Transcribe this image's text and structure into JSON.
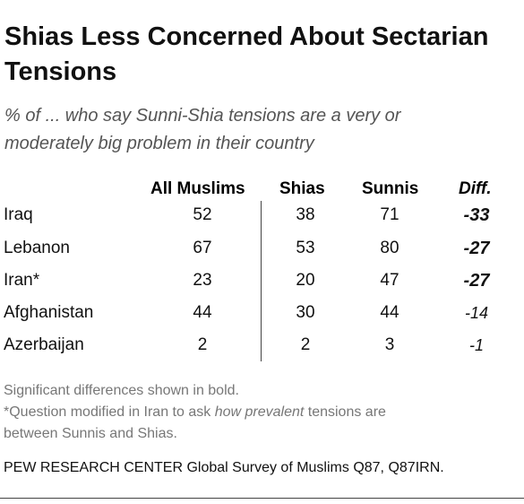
{
  "header": {
    "title_line1": "Shias Less Concerned About Sectarian",
    "title_line2": "Tensions",
    "subtitle_line1": "% of ... who say Sunni-Shia tensions are a very or",
    "subtitle_line2": "moderately big problem in their country"
  },
  "chart_data": {
    "type": "table",
    "columns": [
      "All Muslims",
      "Shias",
      "Sunnis",
      "Diff."
    ],
    "rows": [
      {
        "label": "Iraq",
        "values": [
          "52",
          "38",
          "71",
          "-33"
        ],
        "significant": true
      },
      {
        "label": "Lebanon",
        "values": [
          "67",
          "53",
          "80",
          "-27"
        ],
        "significant": true
      },
      {
        "label": "Iran*",
        "values": [
          "23",
          "20",
          "47",
          "-27"
        ],
        "significant": true
      },
      {
        "label": "Afghanistan",
        "values": [
          "44",
          "30",
          "44",
          "-14"
        ],
        "significant": false
      },
      {
        "label": "Azerbaijan",
        "values": [
          "2",
          "2",
          "3",
          "-1"
        ],
        "significant": false
      }
    ]
  },
  "footnotes": {
    "line1": "Significant differences shown in bold.",
    "line2_pre": "*Question modified in Iran to ask ",
    "line2_italic": "how prevalent",
    "line2_post": " tensions are",
    "line3": "between Sunnis and Shias."
  },
  "source": {
    "org": "PEW RESEARCH CENTER",
    "text": " Global Survey of Muslims Q87, Q87IRN."
  }
}
